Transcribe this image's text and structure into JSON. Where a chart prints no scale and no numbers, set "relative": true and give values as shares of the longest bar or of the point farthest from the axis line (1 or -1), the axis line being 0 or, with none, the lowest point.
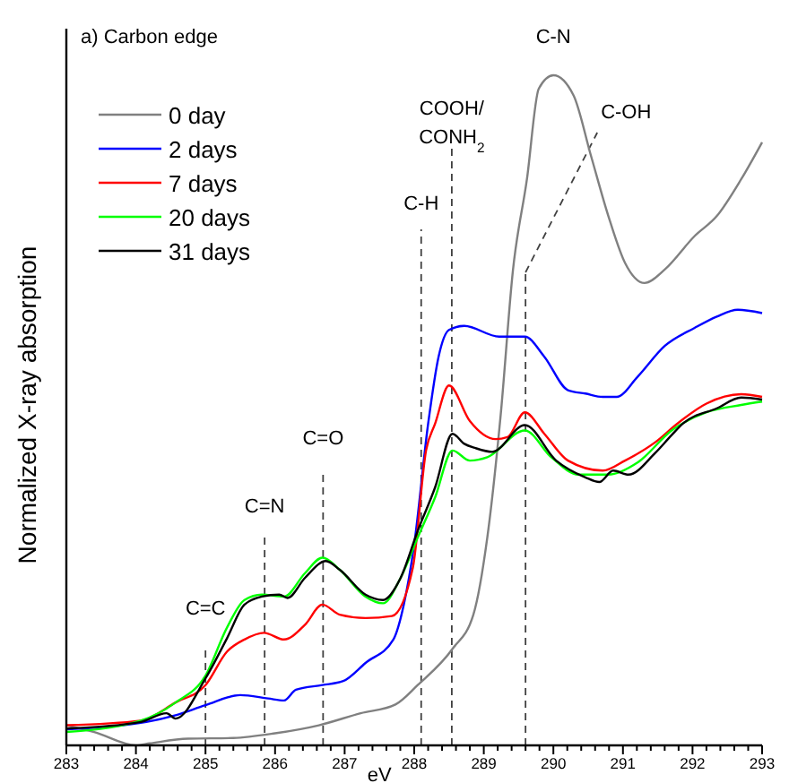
{
  "chart_data": {
    "type": "line",
    "title": "a) Carbon edge",
    "xlabel": "eV",
    "ylabel": "Normalized X-ray absorption",
    "relative": true,
    "legend": "top left",
    "grid": false,
    "marker": "none",
    "line_style": "solid",
    "xlim": [
      283,
      293
    ],
    "xticks": [
      283,
      {
        "value": 283.2,
        "label": null
      },
      {
        "value": 283.4,
        "label": null
      },
      {
        "value": 283.6,
        "label": null
      },
      {
        "value": 283.8,
        "label": null
      },
      284,
      {
        "value": 284.2,
        "label": null
      },
      {
        "value": 284.4,
        "label": null
      },
      {
        "value": 284.6,
        "label": null
      },
      {
        "value": 284.8,
        "label": null
      },
      285,
      {
        "value": 285.2,
        "label": null
      },
      {
        "value": 285.4,
        "label": null
      },
      {
        "value": 285.6,
        "label": null
      },
      {
        "value": 285.8,
        "label": null
      },
      286,
      {
        "value": 286.2,
        "label": null
      },
      {
        "value": 286.4,
        "label": null
      },
      {
        "value": 286.6,
        "label": null
      },
      {
        "value": 286.8,
        "label": null
      },
      287,
      {
        "value": 287.2,
        "label": null
      },
      {
        "value": 287.4,
        "label": null
      },
      {
        "value": 287.6,
        "label": null
      },
      {
        "value": 287.8,
        "label": null
      },
      288,
      {
        "value": 288.2,
        "label": null
      },
      {
        "value": 288.4,
        "label": null
      },
      {
        "value": 288.6,
        "label": null
      },
      {
        "value": 288.8,
        "label": null
      },
      289,
      {
        "value": 289.2,
        "label": null
      },
      {
        "value": 289.4,
        "label": null
      },
      {
        "value": 289.6,
        "label": null
      },
      {
        "value": 289.8,
        "label": null
      },
      290,
      {
        "value": 290.2,
        "label": null
      },
      {
        "value": 290.4,
        "label": null
      },
      {
        "value": 290.6,
        "label": null
      },
      {
        "value": 290.8,
        "label": null
      },
      291,
      {
        "value": 291.2,
        "label": null
      },
      {
        "value": 291.4,
        "label": null
      },
      {
        "value": 291.6,
        "label": null
      },
      {
        "value": 291.8,
        "label": null
      },
      292,
      {
        "value": 292.2,
        "label": null
      },
      {
        "value": 292.4,
        "label": null
      },
      {
        "value": 292.6,
        "label": null
      },
      {
        "value": 292.8,
        "label": null
      },
      293
    ],
    "series": [
      {
        "name": "0 day",
        "color": "#808080",
        "x": [
          283,
          283.4,
          284.0,
          284.2,
          284.75,
          285.4,
          286.0,
          286.63,
          287.23,
          287.73,
          288.05,
          288.55,
          288.85,
          289.05,
          289.24,
          289.42,
          289.62,
          289.79,
          290.0,
          290.29,
          290.54,
          290.79,
          291.03,
          291.31,
          291.6,
          292.03,
          292.35,
          292.7,
          293
        ],
        "values": [
          0.03,
          0.02,
          0.0,
          0.003,
          0.01,
          0.011,
          0.018,
          0.03,
          0.048,
          0.061,
          0.09,
          0.144,
          0.195,
          0.31,
          0.49,
          0.71,
          0.845,
          0.98,
          1.0,
          0.97,
          0.88,
          0.79,
          0.72,
          0.69,
          0.71,
          0.76,
          0.79,
          0.845,
          0.9
        ]
      },
      {
        "name": "2 days",
        "color": "#0000ff",
        "x": [
          283,
          284.15,
          284.57,
          285.0,
          285.5,
          285.9,
          286.13,
          286.3,
          286.68,
          286.98,
          287.3,
          287.7,
          287.85,
          288.0,
          288.2,
          288.35,
          288.5,
          288.72,
          289.22,
          289.59,
          289.87,
          290.21,
          290.46,
          290.71,
          290.91,
          291.21,
          291.6,
          292.03,
          292.35,
          292.65,
          293
        ],
        "values": [
          0.024,
          0.035,
          0.045,
          0.06,
          0.075,
          0.07,
          0.067,
          0.083,
          0.09,
          0.096,
          0.123,
          0.158,
          0.21,
          0.3,
          0.48,
          0.58,
          0.62,
          0.626,
          0.61,
          0.61,
          0.58,
          0.53,
          0.525,
          0.52,
          0.52,
          0.55,
          0.596,
          0.623,
          0.64,
          0.65,
          0.645
        ]
      },
      {
        "name": "7 days",
        "color": "#ff0000",
        "x": [
          283,
          284.07,
          284.57,
          285.0,
          285.31,
          285.56,
          285.84,
          286.13,
          286.43,
          286.68,
          286.93,
          287.3,
          287.68,
          287.98,
          288.17,
          288.3,
          288.5,
          288.8,
          289.17,
          289.34,
          289.59,
          289.87,
          290.21,
          290.71,
          291.03,
          291.46,
          291.78,
          292.2,
          292.7,
          293
        ],
        "values": [
          0.03,
          0.037,
          0.064,
          0.09,
          0.14,
          0.158,
          0.168,
          0.158,
          0.18,
          0.21,
          0.195,
          0.19,
          0.193,
          0.265,
          0.44,
          0.48,
          0.537,
          0.484,
          0.457,
          0.46,
          0.497,
          0.465,
          0.425,
          0.41,
          0.425,
          0.452,
          0.48,
          0.51,
          0.524,
          0.52
        ]
      },
      {
        "name": "20 days",
        "color": "#00ff00",
        "x": [
          283,
          284.07,
          284.57,
          285.0,
          285.31,
          285.56,
          285.81,
          286.13,
          286.43,
          286.68,
          286.93,
          287.3,
          287.55,
          287.8,
          288.05,
          288.3,
          288.55,
          288.8,
          289.05,
          289.59,
          289.97,
          290.36,
          290.79,
          291.21,
          291.7,
          292.2,
          292.7,
          293
        ],
        "values": [
          0.02,
          0.037,
          0.064,
          0.104,
          0.176,
          0.217,
          0.225,
          0.222,
          0.257,
          0.28,
          0.262,
          0.222,
          0.212,
          0.249,
          0.31,
          0.37,
          0.44,
          0.425,
          0.43,
          0.47,
          0.43,
          0.404,
          0.404,
          0.422,
          0.47,
          0.497,
          0.508,
          0.513
        ]
      },
      {
        "name": "31 days",
        "color": "#000000",
        "x": [
          283,
          284.07,
          284.44,
          284.57,
          285.0,
          285.31,
          285.56,
          285.81,
          286.06,
          286.18,
          286.43,
          286.73,
          286.93,
          287.3,
          287.55,
          287.8,
          288.05,
          288.3,
          288.55,
          288.72,
          288.87,
          289.12,
          289.59,
          290.04,
          290.46,
          290.66,
          290.86,
          291.08,
          291.46,
          291.7,
          291.86,
          292.35,
          292.7,
          293
        ],
        "values": [
          0.025,
          0.035,
          0.048,
          0.04,
          0.1,
          0.16,
          0.21,
          0.222,
          0.225,
          0.22,
          0.25,
          0.275,
          0.262,
          0.225,
          0.217,
          0.249,
          0.32,
          0.385,
          0.465,
          0.45,
          0.444,
          0.438,
          0.478,
          0.425,
          0.4,
          0.393,
          0.41,
          0.404,
          0.436,
          0.463,
          0.48,
          0.503,
          0.519,
          0.516
        ]
      }
    ],
    "ref_lines": [
      {
        "axis": "x",
        "value": 285.0,
        "label": "C=C",
        "line_style": "dashed",
        "color": "#404040"
      },
      {
        "axis": "x",
        "value": 285.85,
        "label": "C=N",
        "line_style": "dashed",
        "color": "#404040"
      },
      {
        "axis": "x",
        "value": 286.69,
        "label": "C=O",
        "line_style": "dashed",
        "color": "#404040"
      },
      {
        "axis": "x",
        "value": 288.1,
        "label": "C-H",
        "line_style": "dashed",
        "color": "#404040"
      },
      {
        "axis": "x",
        "value": 288.54,
        "label": "COOH/CONH$_{2}$",
        "line_style": "dashed",
        "color": "#404040"
      },
      {
        "axis": "x",
        "value": 289.6,
        "label": "C-OH",
        "line_style": "dashed",
        "color": "#404040"
      }
    ],
    "annotations": [
      {
        "text": "C-N",
        "x": 290,
        "y": 1.0
      }
    ]
  }
}
